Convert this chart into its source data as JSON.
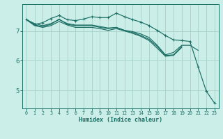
{
  "xlabel": "Humidex (Indice chaleur)",
  "background_color": "#cceee8",
  "grid_color": "#aad4cc",
  "line_color": "#1a6e64",
  "xlim": [
    -0.5,
    23.5
  ],
  "ylim": [
    4.4,
    7.9
  ],
  "yticks": [
    5,
    6,
    7
  ],
  "xticks": [
    0,
    1,
    2,
    3,
    4,
    5,
    6,
    7,
    8,
    9,
    10,
    11,
    12,
    13,
    14,
    15,
    16,
    17,
    18,
    19,
    20,
    21,
    22,
    23
  ],
  "series": [
    {
      "x": [
        0,
        1,
        2,
        3,
        4,
        5,
        6,
        7,
        8,
        9,
        10,
        11,
        12,
        13,
        14,
        15,
        16,
        17,
        18,
        19,
        20,
        21,
        22,
        23
      ],
      "y": [
        7.38,
        7.22,
        7.28,
        7.42,
        7.52,
        7.38,
        7.35,
        7.4,
        7.48,
        7.45,
        7.45,
        7.6,
        7.48,
        7.38,
        7.3,
        7.18,
        7.02,
        6.85,
        6.7,
        6.68,
        6.65,
        5.8,
        4.98,
        4.58
      ],
      "marker": true
    },
    {
      "x": [
        0,
        1,
        2,
        3,
        4,
        5,
        6,
        7,
        8,
        9,
        10,
        11,
        12,
        13,
        14,
        15,
        16,
        17,
        18,
        19,
        20,
        21
      ],
      "y": [
        7.38,
        7.2,
        7.15,
        7.22,
        7.4,
        7.22,
        7.18,
        7.18,
        7.18,
        7.12,
        7.08,
        7.12,
        7.02,
        6.98,
        6.9,
        6.78,
        6.52,
        6.2,
        6.28,
        6.52,
        6.52,
        6.35
      ],
      "marker": false
    },
    {
      "x": [
        0,
        1,
        2,
        3,
        4,
        5,
        6,
        7,
        8,
        9,
        10,
        11,
        12,
        13,
        14,
        15,
        16,
        17,
        18,
        19
      ],
      "y": [
        7.38,
        7.25,
        7.18,
        7.25,
        7.38,
        7.25,
        7.2,
        7.2,
        7.2,
        7.15,
        7.1,
        7.12,
        7.02,
        6.95,
        6.85,
        6.72,
        6.48,
        6.18,
        6.2,
        6.48
      ],
      "marker": false
    },
    {
      "x": [
        0,
        1,
        2,
        3,
        4,
        5,
        6,
        7,
        8,
        9,
        10,
        11,
        12,
        13,
        14,
        15,
        16,
        17,
        18,
        19
      ],
      "y": [
        7.38,
        7.18,
        7.12,
        7.18,
        7.32,
        7.2,
        7.12,
        7.12,
        7.12,
        7.08,
        7.02,
        7.08,
        7.0,
        6.92,
        6.82,
        6.68,
        6.42,
        6.15,
        6.18,
        6.45
      ],
      "marker": false
    }
  ]
}
